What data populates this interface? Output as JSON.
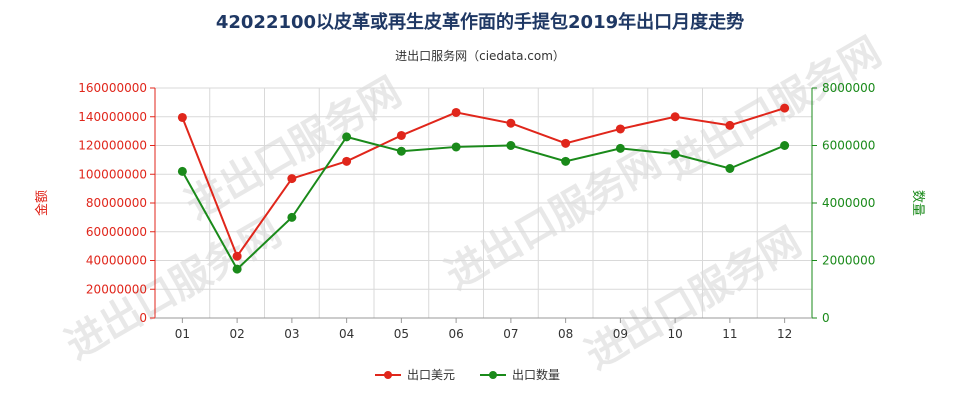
{
  "chart_data": {
    "type": "line",
    "title": "42022100以皮革或再生皮革作面的手提包2019年出口月度走势",
    "subtitle": "进出口服务网（ciedata.com）",
    "watermark": "进出口服务网",
    "categories": [
      "01",
      "02",
      "03",
      "04",
      "05",
      "06",
      "07",
      "08",
      "09",
      "10",
      "11",
      "12"
    ],
    "ylabel_left": "金额",
    "ylabel_right": "数量",
    "ylim_left": [
      0,
      160000000
    ],
    "ylim_right": [
      0,
      8000000
    ],
    "yticks_left": [
      "0",
      "20000000",
      "40000000",
      "60000000",
      "80000000",
      "100000000",
      "120000000",
      "140000000",
      "160000000"
    ],
    "yticks_right": [
      "0",
      "2000000",
      "4000000",
      "6000000",
      "8000000"
    ],
    "grid": true,
    "legend_position": "bottom",
    "series": [
      {
        "name": "出口美元",
        "axis": "left",
        "color": "#e0261b",
        "values": [
          139500000,
          43000000,
          97000000,
          109000000,
          127000000,
          143000000,
          135500000,
          121500000,
          131500000,
          140000000,
          134000000,
          146000000
        ]
      },
      {
        "name": "出口数量",
        "axis": "right",
        "color": "#1a8a1a",
        "values": [
          5100000,
          1700000,
          3500000,
          6300000,
          5800000,
          5950000,
          6000000,
          5450000,
          5900000,
          5700000,
          5200000,
          6000000
        ]
      }
    ]
  }
}
